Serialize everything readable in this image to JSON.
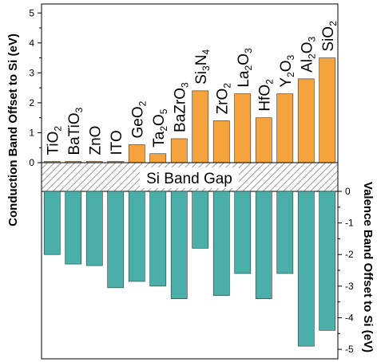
{
  "chart_data": {
    "type": "bar",
    "categories": [
      "TiO2",
      "BaTiO3",
      "ZnO",
      "ITO",
      "GeO2",
      "Ta2O5",
      "BaZrO3",
      "Si3N4",
      "ZrO2",
      "La2O3",
      "HfO2",
      "Y2O3",
      "Al2O3",
      "SiO2"
    ],
    "category_labels": [
      [
        {
          "t": "TiO",
          "sub": false
        },
        {
          "t": "2",
          "sub": true
        }
      ],
      [
        {
          "t": "BaTiO",
          "sub": false
        },
        {
          "t": "3",
          "sub": true
        }
      ],
      [
        {
          "t": "ZnO",
          "sub": false
        }
      ],
      [
        {
          "t": "ITO",
          "sub": false
        }
      ],
      [
        {
          "t": "GeO",
          "sub": false
        },
        {
          "t": "2",
          "sub": true
        }
      ],
      [
        {
          "t": "Ta",
          "sub": false
        },
        {
          "t": "2",
          "sub": true
        },
        {
          "t": "O",
          "sub": false
        },
        {
          "t": "5",
          "sub": true
        }
      ],
      [
        {
          "t": "BaZrO",
          "sub": false
        },
        {
          "t": "3",
          "sub": true
        }
      ],
      [
        {
          "t": "Si",
          "sub": false
        },
        {
          "t": "3",
          "sub": true
        },
        {
          "t": "N",
          "sub": false
        },
        {
          "t": "4",
          "sub": true
        }
      ],
      [
        {
          "t": "ZrO",
          "sub": false
        },
        {
          "t": "2",
          "sub": true
        }
      ],
      [
        {
          "t": "La",
          "sub": false
        },
        {
          "t": "2",
          "sub": true
        },
        {
          "t": "O",
          "sub": false
        },
        {
          "t": "3",
          "sub": true
        }
      ],
      [
        {
          "t": "HfO",
          "sub": false
        },
        {
          "t": "2",
          "sub": true
        }
      ],
      [
        {
          "t": "Y",
          "sub": false
        },
        {
          "t": "2",
          "sub": true
        },
        {
          "t": "O",
          "sub": false
        },
        {
          "t": "3",
          "sub": true
        }
      ],
      [
        {
          "t": "Al",
          "sub": false
        },
        {
          "t": "2",
          "sub": true
        },
        {
          "t": "O",
          "sub": false
        },
        {
          "t": "3",
          "sub": true
        }
      ],
      [
        {
          "t": "SiO",
          "sub": false
        },
        {
          "t": "2",
          "sub": true
        }
      ]
    ],
    "series": [
      {
        "values": [
          0.0,
          0.0,
          0.0,
          0.0,
          0.6,
          0.3,
          0.8,
          2.4,
          1.4,
          2.3,
          1.5,
          2.3,
          2.8,
          3.5
        ],
        "color": "#f5a33c"
      },
      {
        "values": [
          -2.0,
          -2.3,
          -2.35,
          -3.05,
          -2.85,
          -3.0,
          -3.4,
          -1.8,
          -3.3,
          -2.6,
          -3.4,
          -2.6,
          -4.9,
          -4.4
        ],
        "color": "#4aafa8"
      }
    ],
    "ylabel": "Conduction Band Offset to Si (eV)",
    "y2label": "Valence Band Offset to Si (eV)",
    "ylim": [
      0,
      5.3
    ],
    "y2lim": [
      -5.3,
      0
    ],
    "yticks": [
      "0",
      "1",
      "2",
      "3",
      "4",
      "5"
    ],
    "y2ticks": [
      "0",
      "-1",
      "-2",
      "-3",
      "-4",
      "-5"
    ],
    "band_gap_label": "Si Band Gap",
    "grid": false
  }
}
